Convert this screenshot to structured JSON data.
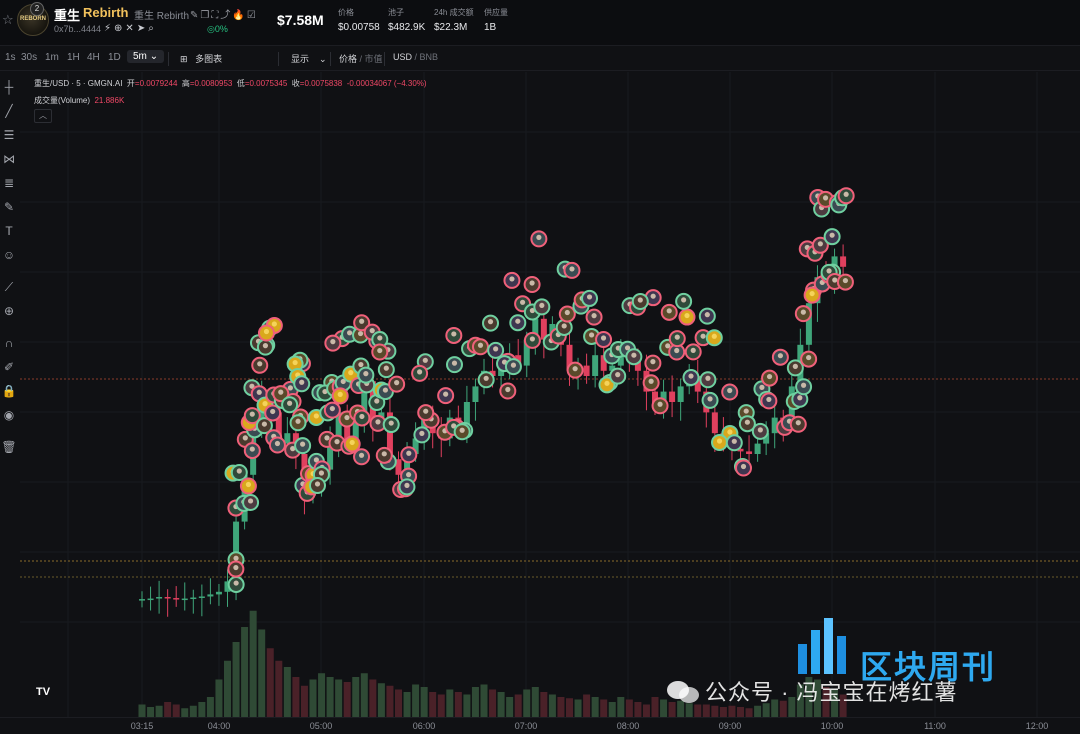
{
  "header": {
    "logo_text": "REBORN",
    "logo_badge": "2",
    "token_name": "重生",
    "token_name_en": "Rebirth",
    "subtitle": "重生 Rebirth",
    "address": "0x7b...4444",
    "holders_pct": "0%",
    "market_cap": "$7.58M",
    "stats": [
      {
        "label": "价格",
        "value": "$0.00758"
      },
      {
        "label": "池子",
        "value": "$482.9K"
      },
      {
        "label": "24h 成交额",
        "value": "$22.3M"
      },
      {
        "label": "供应量",
        "value": "1B"
      }
    ]
  },
  "toolbar": {
    "timeframes": [
      "1s",
      "30s",
      "1m",
      "1H",
      "4H",
      "1D"
    ],
    "selected_timeframe": "5m",
    "multi_chart": "多图表",
    "display": "显示",
    "price_label": "价格",
    "mcap_label": "市值",
    "currency": "USD",
    "alt_currency": "BNB"
  },
  "legend": {
    "symbol": "重生/USD · 5 · GMGN.AI",
    "open_label": "开",
    "open": "=0.0079244",
    "high_label": "高",
    "high": "=0.0080953",
    "low_label": "低",
    "low": "=0.0075345",
    "close_label": "收",
    "close": "=0.0075838",
    "change": "-0.00034067 (−4.30%)",
    "volume_label": "成交量(Volume)",
    "volume_value": "21.886K"
  },
  "colors": {
    "up": "#3fa67a",
    "down": "#e0405e",
    "bg": "#101114",
    "brand": "#2ea9f0"
  },
  "xaxis": [
    "03:15",
    "04:00",
    "05:00",
    "06:00",
    "07:00",
    "08:00",
    "09:00",
    "10:00",
    "11:00",
    "12:00"
  ],
  "watermark": {
    "text": "公众号 · 冯宝宝在烤红薯",
    "brand": "区块周刊"
  },
  "chart_data": {
    "type": "candlestick",
    "interval": "5m",
    "x": [
      "03:15",
      "03:20",
      "03:25",
      "03:30",
      "03:35",
      "03:40",
      "03:45",
      "03:50",
      "03:55",
      "04:00",
      "04:05",
      "04:10",
      "04:15",
      "04:20",
      "04:25",
      "04:30",
      "04:35",
      "04:40",
      "04:45",
      "04:50",
      "04:55",
      "05:00",
      "05:05",
      "05:10",
      "05:15",
      "05:20",
      "05:25",
      "05:30",
      "05:35",
      "05:40",
      "05:45",
      "05:50",
      "05:55",
      "06:00",
      "06:05",
      "06:10",
      "06:15",
      "06:20",
      "06:25",
      "06:30",
      "06:35",
      "06:40",
      "06:45",
      "06:50",
      "06:55",
      "07:00",
      "07:05",
      "07:10",
      "07:15",
      "07:20",
      "07:25",
      "07:30",
      "07:35",
      "07:40",
      "07:45",
      "07:50",
      "07:55",
      "08:00",
      "08:05",
      "08:10",
      "08:15",
      "08:20",
      "08:25",
      "08:30",
      "08:35",
      "08:40",
      "08:45",
      "08:50",
      "08:55",
      "09:00",
      "09:05",
      "09:10",
      "09:15",
      "09:20",
      "09:25",
      "09:30",
      "09:35",
      "09:40",
      "09:45",
      "09:50",
      "09:55",
      "10:00",
      "10:05"
    ],
    "open": [
      0.2,
      0.21,
      0.22,
      0.25,
      0.23,
      0.21,
      0.22,
      0.24,
      0.26,
      0.3,
      0.35,
      0.55,
      1.7,
      2.6,
      3.6,
      4.1,
      3.8,
      3.2,
      3.4,
      3.0,
      2.2,
      2.4,
      2.7,
      3.3,
      3.8,
      3.2,
      3.7,
      4.4,
      3.6,
      3.8,
      2.9,
      2.6,
      3.0,
      3.3,
      3.7,
      3.4,
      3.3,
      3.7,
      3.5,
      4.0,
      4.3,
      4.6,
      4.5,
      4.8,
      4.9,
      4.7,
      5.2,
      5.6,
      5.2,
      5.5,
      5.1,
      4.6,
      4.7,
      4.5,
      4.9,
      4.6,
      4.7,
      4.9,
      4.8,
      4.6,
      4.2,
      3.9,
      4.2,
      4.0,
      4.3,
      4.5,
      4.2,
      3.8,
      3.4,
      3.2,
      3.1,
      3.05,
      3.0,
      3.2,
      3.4,
      3.7,
      3.6,
      4.3,
      5.1,
      5.9,
      6.4,
      6.3,
      6.8
    ],
    "close": [
      0.21,
      0.22,
      0.25,
      0.23,
      0.21,
      0.22,
      0.24,
      0.26,
      0.3,
      0.35,
      0.55,
      1.7,
      2.6,
      3.6,
      4.1,
      3.8,
      3.2,
      3.4,
      3.0,
      2.2,
      2.4,
      2.7,
      3.3,
      3.8,
      3.2,
      3.7,
      4.4,
      3.6,
      3.8,
      2.9,
      2.6,
      3.0,
      3.3,
      3.7,
      3.4,
      3.3,
      3.7,
      3.5,
      4.0,
      4.3,
      4.6,
      4.5,
      4.8,
      4.9,
      4.7,
      5.2,
      5.6,
      5.2,
      5.5,
      5.1,
      4.6,
      4.7,
      4.5,
      4.9,
      4.6,
      4.7,
      4.9,
      4.8,
      4.6,
      4.2,
      3.9,
      4.2,
      4.0,
      4.3,
      4.5,
      4.2,
      3.8,
      3.4,
      3.2,
      3.1,
      3.05,
      3.0,
      3.2,
      3.4,
      3.7,
      3.6,
      4.3,
      5.1,
      5.9,
      6.4,
      6.3,
      6.8,
      6.6
    ],
    "volume": [
      1.0,
      0.8,
      0.9,
      1.2,
      1.0,
      0.7,
      0.9,
      1.2,
      1.6,
      3.0,
      4.5,
      6.0,
      7.2,
      8.5,
      7.0,
      5.5,
      4.5,
      4.0,
      3.2,
      2.5,
      3.0,
      3.5,
      3.2,
      3.0,
      2.8,
      3.2,
      3.5,
      3.0,
      2.7,
      2.5,
      2.2,
      2.0,
      2.6,
      2.4,
      2.0,
      1.8,
      2.2,
      2.0,
      1.8,
      2.4,
      2.6,
      2.2,
      2.0,
      1.6,
      1.8,
      2.2,
      2.4,
      2.0,
      1.8,
      1.6,
      1.5,
      1.4,
      1.8,
      1.6,
      1.4,
      1.2,
      1.6,
      1.4,
      1.2,
      1.0,
      1.6,
      1.4,
      1.2,
      1.3,
      1.1,
      1.0,
      1.0,
      0.9,
      0.8,
      0.9,
      0.8,
      0.7,
      0.9,
      1.1,
      1.4,
      1.3,
      1.6,
      2.6,
      3.2,
      3.0,
      2.4,
      2.2,
      1.8
    ]
  }
}
